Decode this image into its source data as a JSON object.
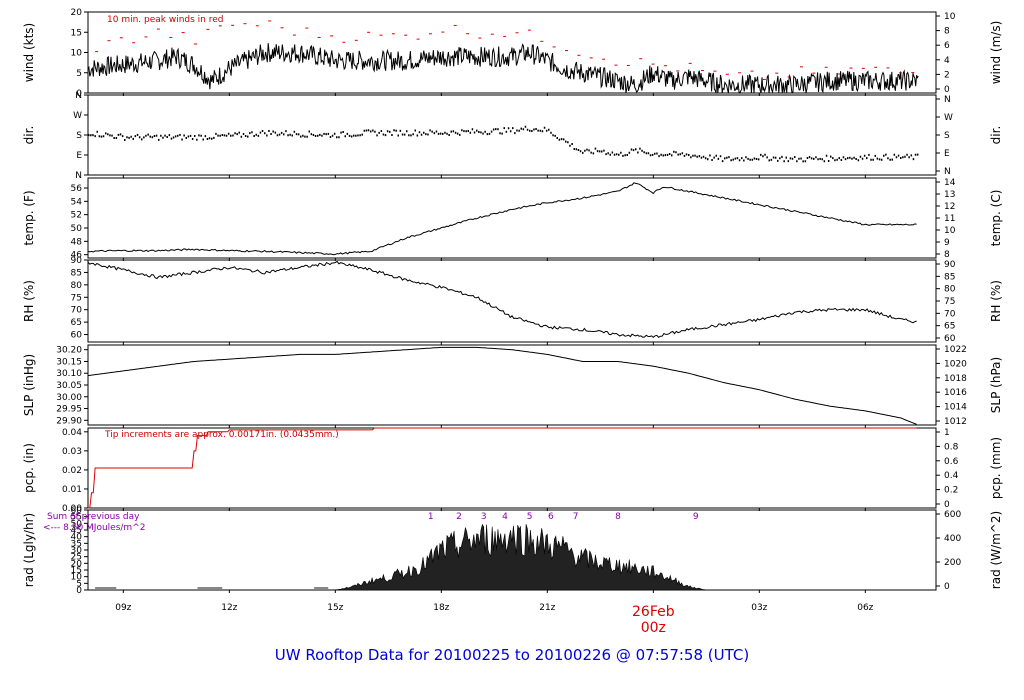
{
  "title": "UW Rooftop Data for 20100225  to  20100226 @ 07:57:58  (UTC)",
  "date_label": {
    "day": "26Feb",
    "hour": "00z"
  },
  "colors": {
    "title": "#0000dd",
    "date": "#dd0000",
    "peak": "#dd0000",
    "pcp": "#dd0000",
    "annot": "#8800aa",
    "trace": "#000000"
  },
  "chart_data": [
    {
      "id": "wind",
      "type": "line",
      "ylabel_left": "wind (kts)",
      "ylabel_right": "wind (m/s)",
      "ylim": [
        0,
        20
      ],
      "left_ticks": [
        "0",
        "5",
        "10",
        "15",
        "20"
      ],
      "right_ticks": [
        "0",
        "2",
        "4",
        "6",
        "8",
        "10"
      ],
      "annotation": "10 min. peak winds in red",
      "series": [
        {
          "name": "wind speed",
          "x": [
            8,
            9,
            10,
            10.5,
            11,
            11.5,
            12,
            13,
            14,
            15,
            16,
            17,
            18,
            19,
            20,
            20.5,
            21,
            21.5,
            22,
            22.5,
            23,
            23.5,
            24,
            24.5,
            25,
            26,
            27,
            28,
            29,
            30,
            31,
            31.5
          ],
          "y": [
            6,
            7,
            8,
            9,
            7,
            3,
            6,
            10,
            10,
            8,
            8,
            8,
            9,
            9,
            9,
            10,
            8,
            6,
            5,
            4,
            3,
            2,
            5,
            3,
            4,
            2,
            2,
            2,
            3,
            3,
            3,
            3
          ]
        },
        {
          "name": "10 min. peak winds",
          "x": [
            8,
            9,
            10,
            11,
            12,
            13,
            14,
            15,
            16,
            17,
            18,
            19,
            20,
            21,
            22,
            23,
            24,
            25,
            26,
            27,
            28,
            29,
            30,
            31
          ],
          "y": [
            11,
            13,
            15,
            13,
            17,
            17,
            15,
            14,
            14,
            14,
            16,
            15,
            15,
            13,
            10,
            8,
            7,
            6,
            4,
            4,
            5,
            5,
            6,
            5
          ]
        }
      ]
    },
    {
      "id": "dir",
      "type": "scatter",
      "ylabel_left": "dir.",
      "ylabel_right": "dir.",
      "ylim": [
        0,
        360
      ],
      "left_ticks": [
        "N",
        "E",
        "S",
        "W",
        "N"
      ],
      "right_ticks": [
        "N",
        "E",
        "S",
        "W",
        "N"
      ],
      "series": [
        {
          "name": "wind direction",
          "x": [
            8,
            9,
            10,
            11,
            12,
            13,
            14,
            15,
            16,
            17,
            18,
            19,
            20,
            20.5,
            21,
            21.5,
            22,
            22.5,
            23,
            23.5,
            24,
            25,
            26,
            27,
            28,
            29,
            30,
            31,
            31.5
          ],
          "y": [
            190,
            170,
            170,
            170,
            175,
            190,
            185,
            180,
            190,
            190,
            190,
            195,
            200,
            210,
            200,
            150,
            100,
            110,
            90,
            110,
            95,
            90,
            70,
            80,
            70,
            75,
            80,
            80,
            80
          ]
        }
      ]
    },
    {
      "id": "temp",
      "type": "line",
      "ylabel_left": "temp. (F)",
      "ylabel_right": "temp. (C)",
      "ylim": [
        45.5,
        57.5
      ],
      "left_ticks": [
        "46",
        "48",
        "50",
        "52",
        "54",
        "56"
      ],
      "right_ticks": [
        "8",
        "9",
        "10",
        "11",
        "12",
        "13",
        "14"
      ],
      "series": [
        {
          "name": "temperature",
          "x": [
            8,
            9,
            10,
            11,
            12,
            13,
            14,
            15,
            16,
            17,
            18,
            19,
            20,
            21,
            22,
            23,
            23.5,
            24,
            24.3,
            25,
            26,
            27,
            28,
            29,
            30,
            31,
            31.5
          ],
          "y": [
            46.5,
            46.6,
            46.6,
            46.8,
            46.6,
            46.5,
            46.3,
            46.1,
            46.5,
            48.5,
            50,
            51.5,
            52.8,
            53.8,
            54.5,
            55.5,
            56.8,
            55.3,
            56.2,
            55.5,
            54.5,
            53.5,
            52.5,
            51.5,
            50.5,
            50.5,
            50.5
          ]
        }
      ]
    },
    {
      "id": "rh",
      "type": "line",
      "ylabel_left": "RH (%)",
      "ylabel_right": "RH (%)",
      "ylim": [
        57,
        90
      ],
      "left_ticks": [
        "60",
        "65",
        "70",
        "75",
        "80",
        "85",
        "90"
      ],
      "right_ticks": [
        "60",
        "65",
        "70",
        "75",
        "80",
        "85",
        "90"
      ],
      "series": [
        {
          "name": "relative humidity",
          "x": [
            8,
            9,
            10,
            11,
            12,
            13,
            14,
            15,
            16,
            17,
            18,
            19,
            20,
            21,
            22,
            23,
            24,
            25,
            26,
            27,
            28,
            29,
            30,
            31,
            31.5
          ],
          "y": [
            89,
            86,
            83,
            85,
            87,
            85,
            87,
            89,
            86,
            82,
            79,
            75,
            67,
            63,
            62,
            60,
            59,
            62,
            64,
            66,
            69,
            70,
            70,
            66,
            65
          ]
        }
      ]
    },
    {
      "id": "slp",
      "type": "line",
      "ylabel_left": "SLP (inHg)",
      "ylabel_right": "SLP (hPa)",
      "ylim": [
        29.88,
        30.22
      ],
      "left_ticks": [
        "29.90",
        "29.95",
        "30.00",
        "30.05",
        "30.10",
        "30.15",
        "30.20"
      ],
      "right_ticks": [
        "1012",
        "1014",
        "1016",
        "1018",
        "1020",
        "1022"
      ],
      "series": [
        {
          "name": "sea level pressure",
          "x": [
            8,
            9,
            10,
            11,
            12,
            13,
            14,
            15,
            16,
            17,
            18,
            19,
            20,
            21,
            22,
            23,
            24,
            25,
            26,
            27,
            28,
            29,
            30,
            31,
            31.5
          ],
          "y": [
            30.09,
            30.11,
            30.13,
            30.15,
            30.16,
            30.17,
            30.18,
            30.18,
            30.19,
            30.2,
            30.21,
            30.21,
            30.2,
            30.18,
            30.15,
            30.15,
            30.13,
            30.1,
            30.06,
            30.03,
            29.99,
            29.96,
            29.94,
            29.91,
            29.88
          ]
        }
      ]
    },
    {
      "id": "pcp",
      "type": "line",
      "ylabel_left": "pcp. (in)",
      "ylabel_right": "pcp. (mm)",
      "ylim": [
        0,
        0.042
      ],
      "left_ticks": [
        "0.00",
        "0.01",
        "0.02",
        "0.03",
        "0.04"
      ],
      "right_ticks": [
        "0",
        "0.2",
        "0.4",
        "0.6",
        "0.8",
        "1"
      ],
      "annotation": "Tip increments are approx. 0.00171in. (0.0435mm.)",
      "series": [
        {
          "name": "accumulated precipitation",
          "x": [
            8,
            8.1,
            8.2,
            10.8,
            11,
            11.1,
            11.4,
            12,
            16,
            16.1,
            31.5
          ],
          "y": [
            0,
            0.008,
            0.021,
            0.021,
            0.03,
            0.038,
            0.04,
            0.041,
            0.041,
            0.043,
            0.043
          ]
        }
      ]
    },
    {
      "id": "rad",
      "type": "area",
      "ylabel_left": "rad (Lgly/hr)",
      "ylabel_right": "rad (W/m^2)",
      "ylim": [
        0,
        60
      ],
      "left_ticks": [
        "0",
        "5",
        "10",
        "15",
        "20",
        "25",
        "30",
        "35",
        "40",
        "45",
        "50",
        "55",
        "60"
      ],
      "right_ticks": [
        "0",
        "200",
        "400",
        "600"
      ],
      "annotations": [
        "Sum of previous day",
        "<--- 8.50 MJoules/m^2"
      ],
      "markers": [
        "1",
        "2",
        "3",
        "4",
        "5",
        "6",
        "7",
        "8",
        "9"
      ],
      "marker_x": [
        17.7,
        18.5,
        19.2,
        19.8,
        20.5,
        21.1,
        21.8,
        23,
        25.2
      ],
      "series": [
        {
          "name": "solar radiation",
          "x": [
            15,
            15.5,
            16,
            16.5,
            17,
            17.5,
            18,
            18.5,
            19,
            19.5,
            20,
            20.5,
            21,
            21.5,
            22,
            22.5,
            23,
            23.5,
            24,
            24.5,
            25,
            25.5
          ],
          "y": [
            0,
            3,
            8,
            11,
            16,
            22,
            35,
            40,
            45,
            45,
            48,
            45,
            40,
            36,
            28,
            24,
            22,
            19,
            16,
            10,
            3,
            0
          ]
        }
      ]
    }
  ],
  "x_axis": {
    "range_hours": [
      8,
      32
    ],
    "ticks": [
      {
        "label": "09z",
        "hour": 9
      },
      {
        "label": "12z",
        "hour": 12
      },
      {
        "label": "15z",
        "hour": 15
      },
      {
        "label": "18z",
        "hour": 18
      },
      {
        "label": "21z",
        "hour": 21
      },
      {
        "label": "03z",
        "hour": 27
      },
      {
        "label": "06z",
        "hour": 30
      }
    ]
  }
}
